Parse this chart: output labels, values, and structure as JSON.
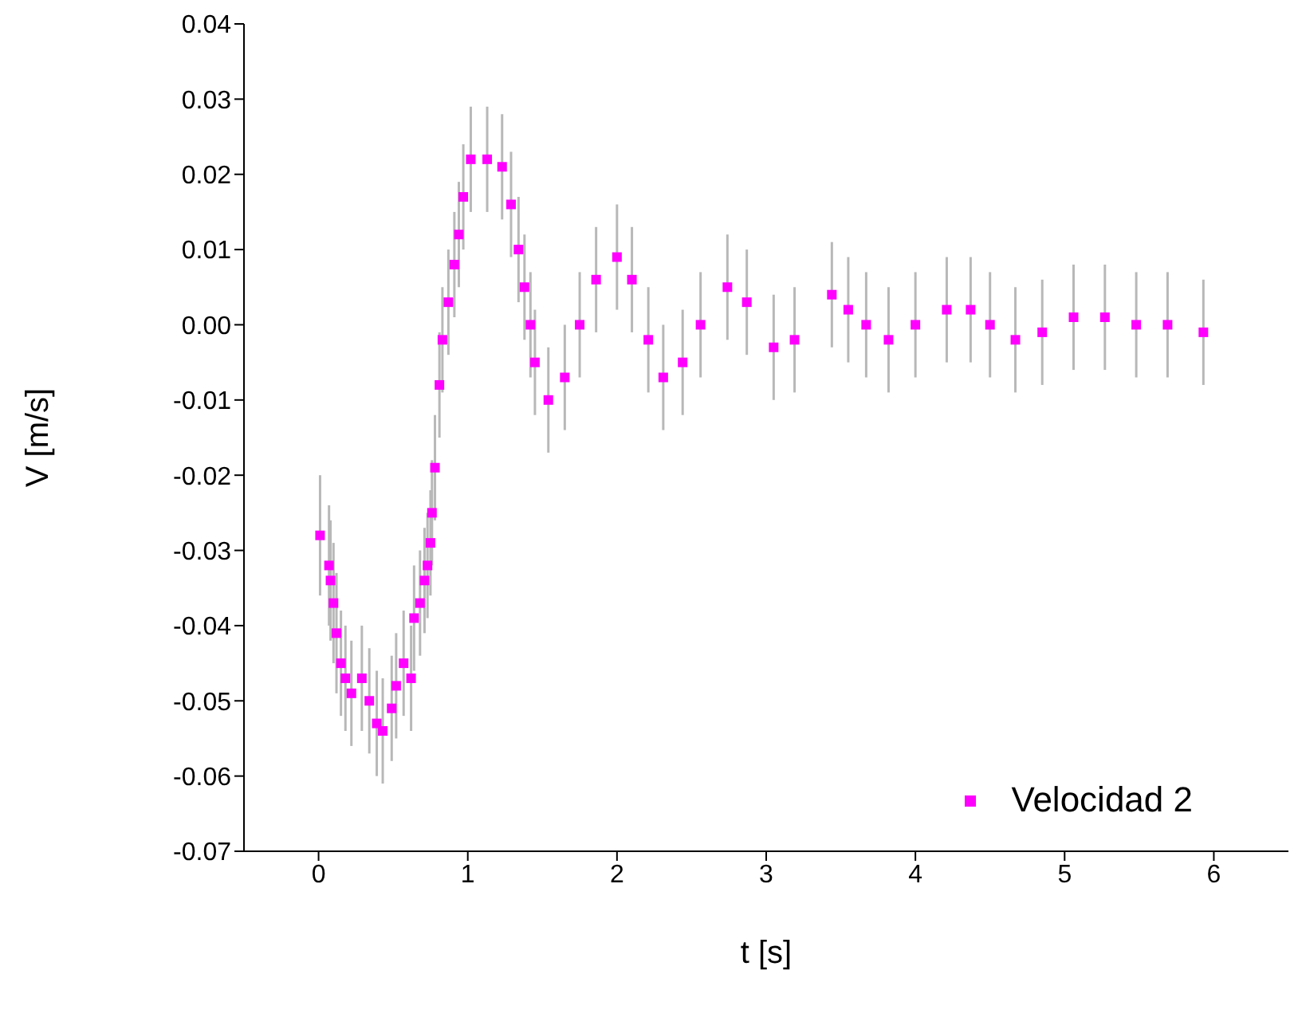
{
  "chart_data": {
    "type": "scatter",
    "xlabel": "t [s]",
    "ylabel": "V [m/s]",
    "xlim": [
      -0.5,
      6.5
    ],
    "xticks": [
      0,
      1,
      2,
      3,
      4,
      5,
      6
    ],
    "ylim": [
      -0.07,
      0.04
    ],
    "yticks": [
      {
        "value": -0.07,
        "label": "-0.07"
      },
      {
        "value": -0.06,
        "label": "-0.06"
      },
      {
        "value": -0.05,
        "label": "-0.05"
      },
      {
        "value": -0.04,
        "label": "-0.04"
      },
      {
        "value": -0.03,
        "label": "-0.03"
      },
      {
        "value": -0.02,
        "label": "-0.02"
      },
      {
        "value": -0.01,
        "label": "-0.01"
      },
      {
        "value": 0,
        "label": "0.00"
      },
      {
        "value": 0.01,
        "label": "0.01"
      },
      {
        "value": 0.02,
        "label": "0.02"
      },
      {
        "value": 0.03,
        "label": "0.03"
      },
      {
        "value": 0.04,
        "label": "0.04"
      }
    ],
    "grid": false,
    "legend": "bottom right",
    "marker": "square",
    "x": [
      0.01,
      0.07,
      0.08,
      0.1,
      0.12,
      0.15,
      0.18,
      0.22,
      0.29,
      0.34,
      0.39,
      0.43,
      0.49,
      0.52,
      0.57,
      0.62,
      0.64,
      0.68,
      0.71,
      0.73,
      0.75,
      0.76,
      0.78,
      0.81,
      0.83,
      0.87,
      0.91,
      0.94,
      0.97,
      1.02,
      1.13,
      1.23,
      1.29,
      1.34,
      1.38,
      1.42,
      1.45,
      1.54,
      1.65,
      1.75,
      1.86,
      2.0,
      2.1,
      2.21,
      2.31,
      2.44,
      2.56,
      2.74,
      2.87,
      3.05,
      3.19,
      3.44,
      3.55,
      3.67,
      3.82,
      4.0,
      4.21,
      4.37,
      4.5,
      4.67,
      4.85,
      5.06,
      5.27,
      5.48,
      5.69,
      5.93
    ],
    "series": [
      {
        "name": "Velocidad 2",
        "color": "#ff00ff",
        "values": [
          -0.028,
          -0.032,
          -0.034,
          -0.037,
          -0.041,
          -0.045,
          -0.047,
          -0.049,
          -0.047,
          -0.05,
          -0.053,
          -0.054,
          -0.051,
          -0.048,
          -0.045,
          -0.047,
          -0.039,
          -0.037,
          -0.034,
          -0.032,
          -0.029,
          -0.025,
          -0.019,
          -0.008,
          -0.002,
          0.003,
          0.008,
          0.012,
          0.017,
          0.022,
          0.022,
          0.021,
          0.016,
          0.01,
          0.005,
          0.0,
          -0.005,
          -0.01,
          -0.007,
          0.0,
          0.006,
          0.009,
          0.006,
          -0.002,
          -0.007,
          -0.005,
          0.0,
          0.005,
          0.003,
          -0.003,
          -0.002,
          0.004,
          0.002,
          0.0,
          -0.002,
          0.0,
          0.002,
          0.002,
          0.0,
          -0.002,
          -0.001,
          0.001,
          0.001,
          0.0,
          0.0,
          -0.001
        ],
        "errors": [
          0.008,
          0.008,
          0.008,
          0.008,
          0.008,
          0.007,
          0.007,
          0.007,
          0.007,
          0.007,
          0.007,
          0.007,
          0.007,
          0.007,
          0.007,
          0.007,
          0.007,
          0.007,
          0.007,
          0.007,
          0.007,
          0.007,
          0.007,
          0.007,
          0.007,
          0.007,
          0.007,
          0.007,
          0.007,
          0.007,
          0.007,
          0.007,
          0.007,
          0.007,
          0.007,
          0.007,
          0.007,
          0.007,
          0.007,
          0.007,
          0.007,
          0.007,
          0.007,
          0.007,
          0.007,
          0.007,
          0.007,
          0.007,
          0.007,
          0.007,
          0.007,
          0.007,
          0.007,
          0.007,
          0.007,
          0.007,
          0.007,
          0.007,
          0.007,
          0.007,
          0.007,
          0.007,
          0.007,
          0.007,
          0.007,
          0.007
        ]
      }
    ]
  }
}
